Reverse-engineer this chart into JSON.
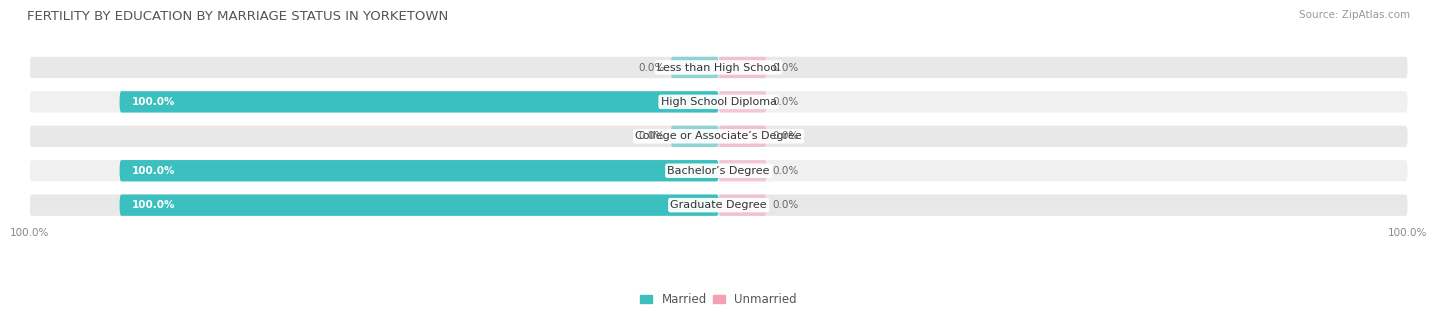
{
  "title": "FERTILITY BY EDUCATION BY MARRIAGE STATUS IN YORKETOWN",
  "source": "Source: ZipAtlas.com",
  "categories": [
    "Less than High School",
    "High School Diploma",
    "College or Associate’s Degree",
    "Bachelor’s Degree",
    "Graduate Degree"
  ],
  "married_values": [
    0.0,
    100.0,
    0.0,
    100.0,
    100.0
  ],
  "unmarried_values": [
    0.0,
    0.0,
    0.0,
    0.0,
    0.0
  ],
  "married_color": "#3bbfbf",
  "unmarried_color": "#f4a0b5",
  "bar_track_color": "#e8e8e8",
  "bar_track_color_alt": "#f0f0f0",
  "bar_height": 0.62,
  "title_fontsize": 9.5,
  "source_fontsize": 7.5,
  "label_fontsize": 7.5,
  "category_fontsize": 8,
  "legend_fontsize": 8.5,
  "axis_label_fontsize": 7.5,
  "fig_bg_color": "#ffffff",
  "x_axis_left_label": "100.0%",
  "x_axis_right_label": "100.0%",
  "small_bar_width": 8,
  "xlim_left": -115,
  "xlim_right": 115
}
